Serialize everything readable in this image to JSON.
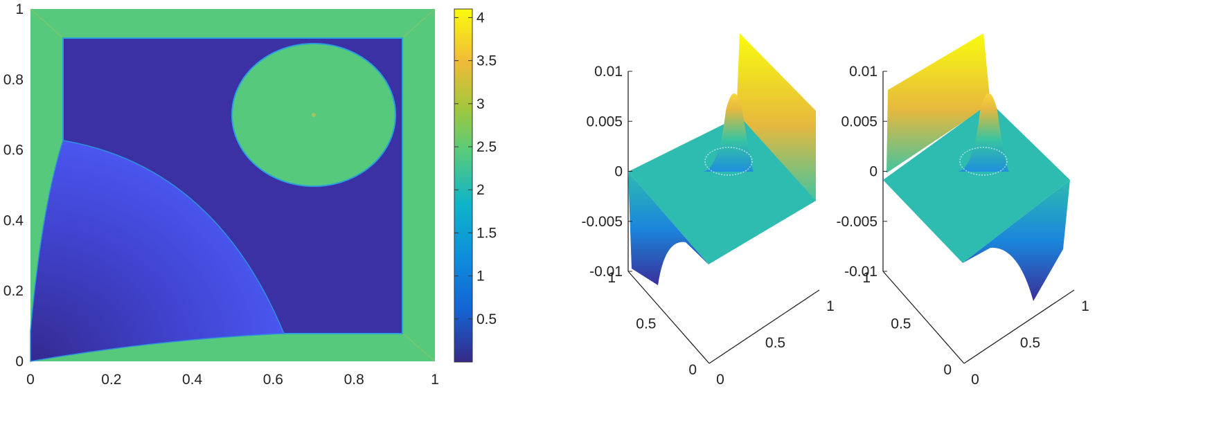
{
  "chart_data": [
    {
      "type": "heatmap",
      "title": "",
      "xlabel": "",
      "ylabel": "",
      "xlim": [
        0,
        1
      ],
      "ylim": [
        0,
        1
      ],
      "x_ticks": [
        "0",
        "0.2",
        "0.4",
        "0.6",
        "0.8",
        "1"
      ],
      "y_ticks": [
        "0",
        "0.2",
        "0.4",
        "0.6",
        "0.8",
        "1"
      ],
      "colorbar": {
        "range": [
          0,
          4.1
        ],
        "ticks": [
          "0.5",
          "1",
          "1.5",
          "2",
          "2.5",
          "3",
          "3.5",
          "4"
        ],
        "colormap": "parula"
      },
      "regions": [
        {
          "shape": "square frame",
          "from": 0.0,
          "to": 0.08,
          "value": 2.45
        },
        {
          "shape": "square",
          "x": [
            0.08,
            0.92
          ],
          "y": [
            0.08,
            0.92
          ],
          "value": 0.05
        },
        {
          "shape": "circle",
          "center": [
            0.7,
            0.7
          ],
          "radius": 0.2,
          "value": 2.45
        },
        {
          "shape": "quarter disk",
          "center": [
            0,
            0
          ],
          "radius": 0.63,
          "value": "0.02 to 0.5 (radial rings)"
        }
      ]
    },
    {
      "type": "surface",
      "xlim": [
        0,
        1
      ],
      "ylim": [
        0,
        1
      ],
      "zlim": [
        -0.01,
        0.01
      ],
      "x_ticks": [
        "0",
        "0.5",
        "1"
      ],
      "y_ticks": [
        "0",
        "0.5",
        "1"
      ],
      "z_ticks": [
        "-0.01",
        "-0.005",
        "0",
        "0.005",
        "0.01"
      ],
      "features": {
        "central_peak_z": 0.0075,
        "back_ridge_z": 0.0148,
        "front_trough_z": -0.0145
      }
    },
    {
      "type": "surface",
      "xlim": [
        0,
        1
      ],
      "ylim": [
        0,
        1
      ],
      "zlim": [
        -0.01,
        0.01
      ],
      "x_ticks": [
        "0",
        "0.5",
        "1"
      ],
      "y_ticks": [
        "0",
        "0.5",
        "1"
      ],
      "z_ticks": [
        "-0.01",
        "-0.005",
        "0",
        "0.005",
        "0.01"
      ],
      "features": {
        "central_peak_z": 0.0075,
        "back_ridge_z": 0.0148,
        "front_trough_z": -0.0145
      }
    }
  ],
  "colors": {
    "parula_low": "#352a87",
    "parula_mid": "#0fb4c8",
    "parula_green": "#5acb7a",
    "parula_high": "#f9fb0e",
    "outer_frame": "#57c97d",
    "inner_square": "#3b31a4",
    "surface_base": "#2ebbb0"
  }
}
